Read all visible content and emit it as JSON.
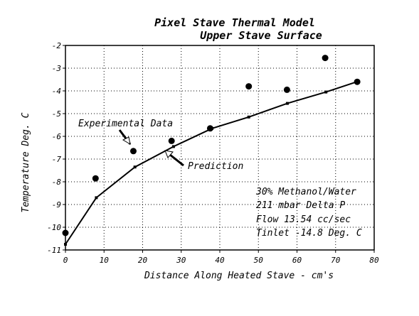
{
  "chart_data": {
    "type": "scatter",
    "title": "Pixel Stave Thermal Model",
    "subtitle": "Upper Stave Surface",
    "xlabel": "Distance Along Heated Stave - cm's",
    "ylabel": "Temperature Deg. C",
    "xlim": [
      0,
      80
    ],
    "ylim": [
      -11,
      -2
    ],
    "xticks": [
      "0",
      "10",
      "20",
      "30",
      "40",
      "50",
      "60",
      "70",
      "80"
    ],
    "yticks": [
      "-2",
      "-3",
      "-4",
      "-5",
      "-6",
      "-7",
      "-8",
      "-9",
      "-10",
      "-11"
    ],
    "grid": true,
    "series": [
      {
        "name": "Experimental Data",
        "style": "markers",
        "x": [
          0,
          7.8,
          17.6,
          27.5,
          37.5,
          47.5,
          57.4,
          67.3,
          75.6
        ],
        "y": [
          -10.25,
          -7.85,
          -6.65,
          -6.2,
          -5.65,
          -3.8,
          -3.95,
          -2.55,
          -3.6
        ]
      },
      {
        "name": "Prediction",
        "style": "line",
        "x": [
          0,
          8,
          18,
          28,
          38,
          47.5,
          57.5,
          67.5,
          75.5
        ],
        "y": [
          -10.75,
          -8.7,
          -7.35,
          -6.45,
          -5.65,
          -5.15,
          -4.55,
          -4.05,
          -3.6
        ]
      }
    ],
    "annotations": {
      "experimental": "Experimental Data",
      "prediction": "Prediction",
      "conditions": [
        "30% Methanol/Water",
        "211 mbar Delta P",
        "Flow 13.54 cc/sec",
        "Tinlet -14.8 Deg. C"
      ]
    }
  }
}
